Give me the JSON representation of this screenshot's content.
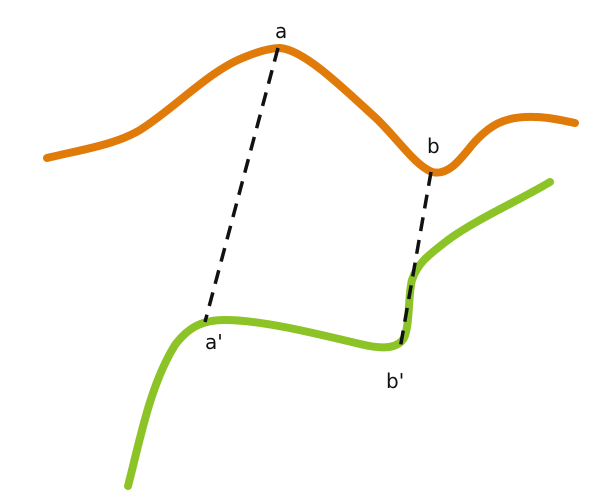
{
  "colors": {
    "upper_curve": "#E07B0A",
    "lower_curve": "#8CC327",
    "connector": "#111111"
  },
  "labels": {
    "a": "a",
    "b": "b",
    "a_prime": "a'",
    "b_prime": "b'"
  }
}
